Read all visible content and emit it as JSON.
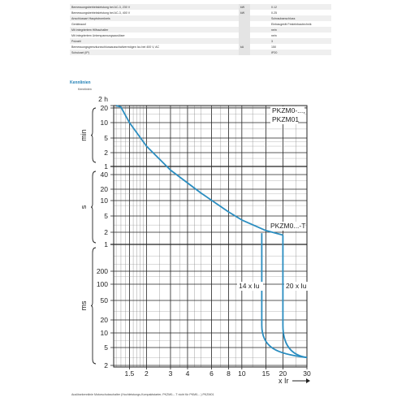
{
  "specs": [
    {
      "label": "Bemessungsbetriebsleistung bei AC-3, 230 V",
      "unit": "kW",
      "value": "0.12"
    },
    {
      "label": "Bemessungsbetriebsleistung bei AC-3, 400 V",
      "unit": "kW",
      "value": "0.25"
    },
    {
      "label": "Anschlussart Hauptstromkreis",
      "unit": "",
      "value": "Schraubanschluss"
    },
    {
      "label": "Geräteausf",
      "unit": "",
      "value": "Einbaugerät Festeinbautechnik"
    },
    {
      "label": "Mit integriertem Hilfsschalter",
      "unit": "",
      "value": "nein"
    },
    {
      "label": "Mit integriertem Unterspannungsauslöser",
      "unit": "",
      "value": "nein"
    },
    {
      "label": "Polzahl",
      "unit": "",
      "value": "3"
    },
    {
      "label": "Bemessungsgrenzkurzschlussausschaltvermögen Icu bei 400 V, AC",
      "unit": "kA",
      "value": "150"
    },
    {
      "label": "Schutzart (IP)",
      "unit": "",
      "value": "IP20"
    }
  ],
  "section": {
    "title": "Kennlinien",
    "subtitle": "Kennlinien"
  },
  "chart_data": {
    "type": "line",
    "xlabel": "x Ir",
    "x_scale": "log",
    "x_ticks": [
      "1.5",
      "2",
      "3",
      "4",
      "6",
      "8",
      "10",
      "15",
      "20",
      "30"
    ],
    "x_range": [
      1.15,
      30
    ],
    "y_ticks": [
      "2 h",
      "20",
      "10",
      "5",
      "2",
      "1",
      "40",
      "20",
      "10",
      "5",
      "2",
      "1",
      "200",
      "100",
      "50",
      "20",
      "10",
      "5",
      "2"
    ],
    "y_groups": [
      "min",
      "s",
      "ms"
    ],
    "annotations": [
      "PKZM0-...,",
      "PKZM01",
      "PKZM0...-T",
      "14 x Iu",
      "20 x Iu"
    ],
    "series": [
      {
        "name": "PKZM0-..., PKZM01",
        "points": [
          [
            1.2,
            7200
          ],
          [
            1.3,
            2400
          ],
          [
            1.5,
            600
          ],
          [
            2,
            180
          ],
          [
            3,
            50
          ],
          [
            5,
            16
          ],
          [
            8,
            6
          ],
          [
            10,
            4
          ],
          [
            15,
            2.2
          ],
          [
            20,
            1.7
          ]
        ]
      },
      {
        "name": "14 x Iu",
        "points": [
          [
            14,
            1.9
          ],
          [
            14,
            0.015
          ],
          [
            15,
            0.006
          ],
          [
            20,
            0.004
          ],
          [
            30,
            0.003
          ]
        ]
      },
      {
        "name": "20 x Iu",
        "points": [
          [
            20,
            1.7
          ],
          [
            20,
            0.015
          ],
          [
            22,
            0.006
          ],
          [
            30,
            0.003
          ]
        ]
      }
    ],
    "colors": {
      "curve": "#2a8dc0",
      "grid": "#222222",
      "title": "#1f7fb5"
    }
  },
  "footer": "Auslösekennlinie Motorschutzschalter (Hochleistungs-Kompaktstarter, PKZM0-...T nicht für PKM0-...) PKZM01"
}
